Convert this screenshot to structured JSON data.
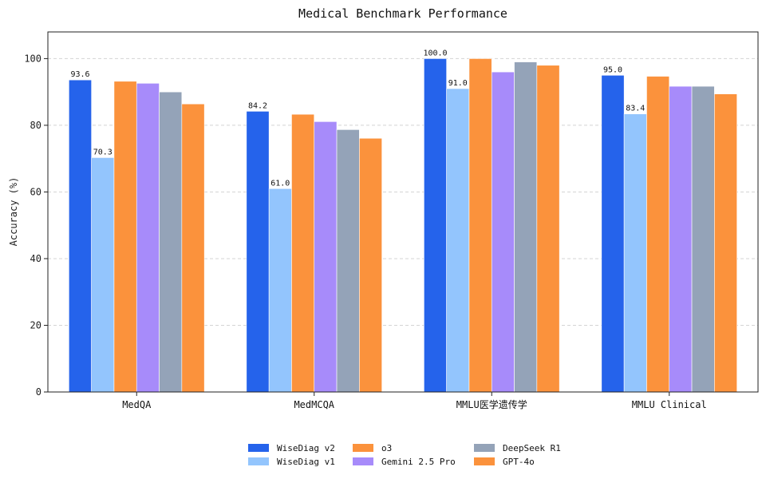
{
  "chart_data": {
    "type": "bar",
    "title": "Medical Benchmark Performance",
    "xlabel": "",
    "ylabel": "Accuracy (%)",
    "ylim": [
      0,
      108
    ],
    "yticks": [
      0,
      20,
      40,
      60,
      80,
      100
    ],
    "grid": "horizontal dashed",
    "legend_position": "bottom-center",
    "categories": [
      "MedQA",
      "MedMCQA",
      "MMLU医学遗传学",
      "MMLU Clinical"
    ],
    "series": [
      {
        "name": "WiseDiag v2",
        "color": "#2563eb",
        "values": [
          93.6,
          84.2,
          100.0,
          95.0
        ],
        "show_labels": true
      },
      {
        "name": "WiseDiag v1",
        "color": "#93c5fd",
        "values": [
          70.3,
          61.0,
          91.0,
          83.4
        ],
        "show_labels": true
      },
      {
        "name": "o3",
        "color": "#fb923c",
        "values": [
          93.2,
          83.3,
          100.0,
          94.7
        ],
        "show_labels": false
      },
      {
        "name": "Gemini 2.5 Pro",
        "color": "#a78bfa",
        "values": [
          92.6,
          81.1,
          96.0,
          91.7
        ],
        "show_labels": false
      },
      {
        "name": "DeepSeek R1",
        "color": "#94a3b8",
        "values": [
          90.0,
          78.7,
          99.0,
          91.7
        ],
        "show_labels": false
      },
      {
        "name": "GPT-4o",
        "color": "#fb923c",
        "values": [
          86.4,
          76.1,
          98.0,
          89.4
        ],
        "show_labels": false
      }
    ],
    "data_labels": {
      "WiseDiag v2": [
        "93.6",
        "84.2",
        "100.0",
        "95.0"
      ],
      "WiseDiag v1": [
        "70.3",
        "61.0",
        "91.0",
        "83.4"
      ]
    }
  }
}
